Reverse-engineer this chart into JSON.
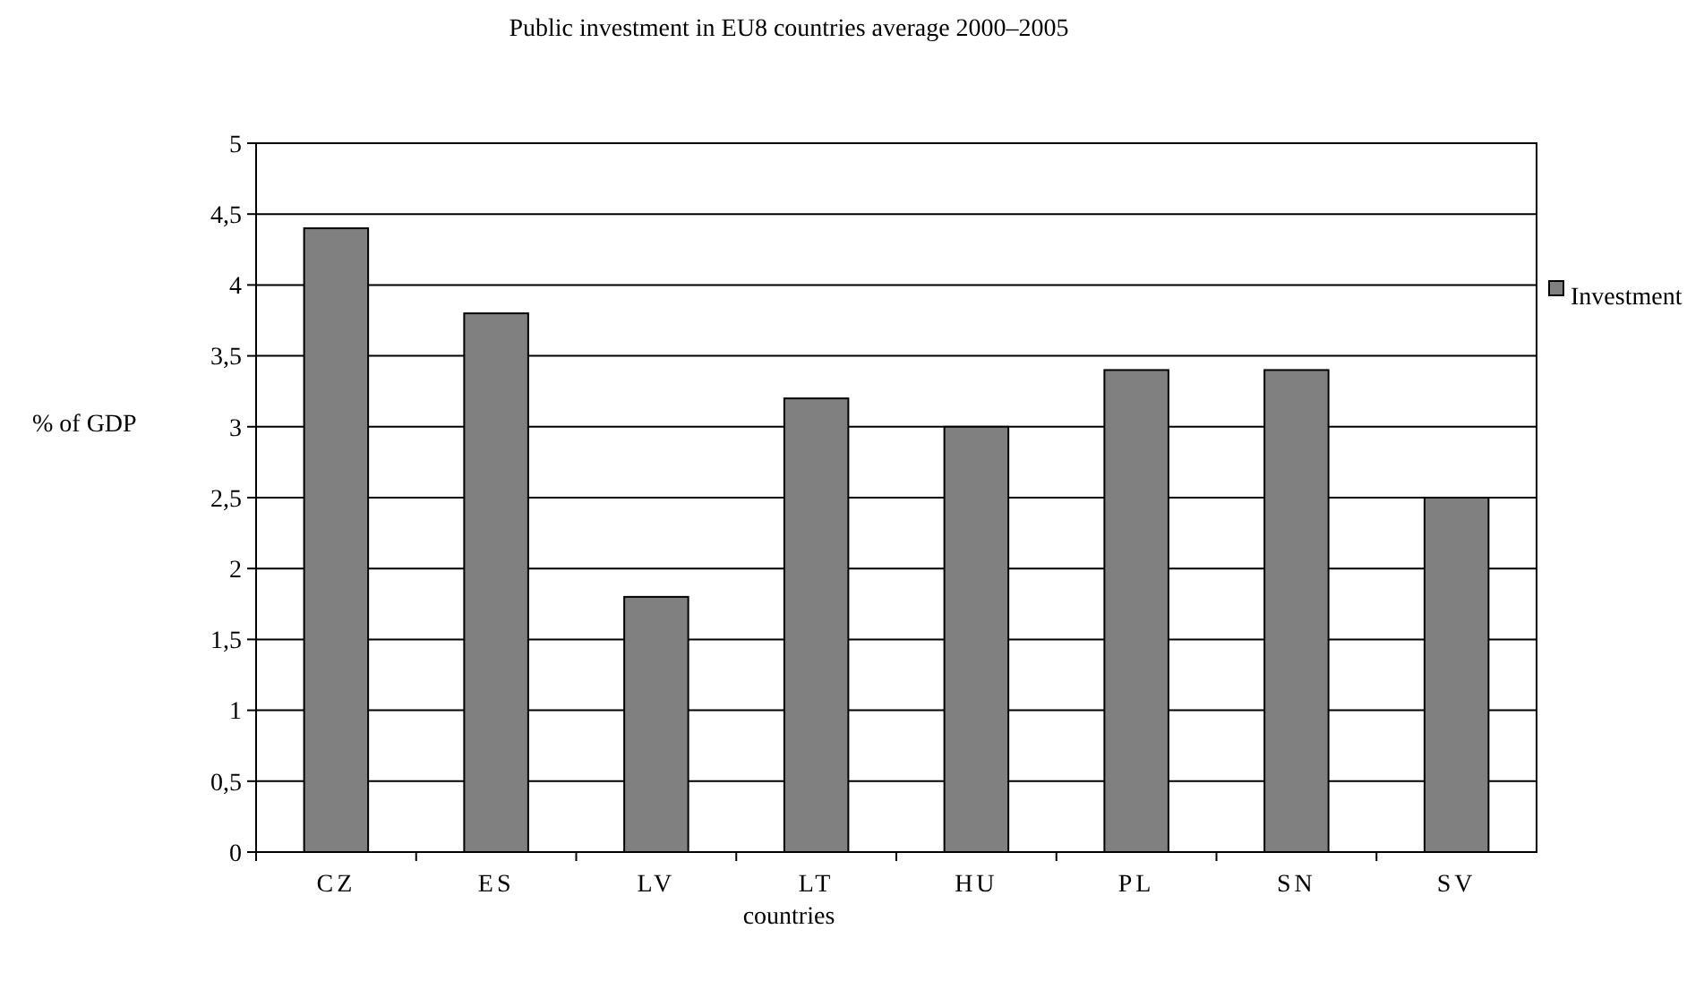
{
  "chart_data": {
    "type": "bar",
    "title": "Public investment in EU8 countries average 2000–2005",
    "xlabel": "countries",
    "ylabel": "% of GDP",
    "categories": [
      "CZ",
      "ES",
      "LV",
      "LT",
      "HU",
      "PL",
      "SN",
      "SV"
    ],
    "series": [
      {
        "name": "Investment",
        "color": "#808080",
        "values": [
          4.4,
          3.8,
          1.8,
          3.2,
          3.0,
          3.4,
          3.4,
          2.5
        ]
      }
    ],
    "ylim": [
      0,
      5
    ],
    "yticks": [
      0,
      {
        "value": 0.5,
        "label": "0,5"
      },
      1,
      {
        "value": 1.5,
        "label": "1,5"
      },
      2,
      {
        "value": 2.5,
        "label": "2,5"
      },
      3,
      {
        "value": 3.5,
        "label": "3,5"
      },
      4,
      {
        "value": 4.5,
        "label": "4,5"
      },
      5
    ],
    "grid": "y",
    "legend": "right"
  }
}
